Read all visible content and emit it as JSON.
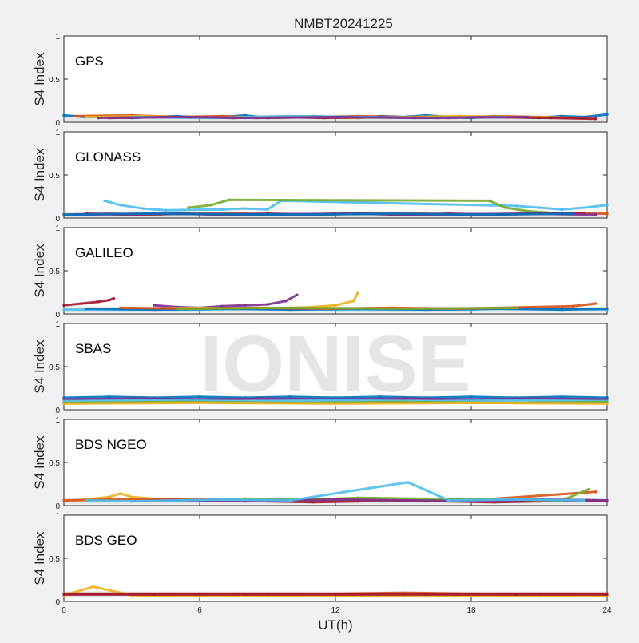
{
  "title": "NMBT20241225",
  "watermark": "IONISE",
  "chart_data": {
    "type": "scatter",
    "title": "NMBT20241225",
    "xlabel": "UT(h)",
    "ylabel": "S4 Index",
    "xlim": [
      0,
      24
    ],
    "ylim": [
      0,
      1
    ],
    "xticks": [
      "0",
      "6",
      "12",
      "18",
      "24"
    ],
    "yticks": [
      "0",
      "0.5",
      "1"
    ],
    "grid": false,
    "series_colors": [
      "#0072bd",
      "#d95319",
      "#edb120",
      "#7e2f8e",
      "#77ac30",
      "#4dbeee",
      "#a2142f"
    ],
    "panels": [
      {
        "name": "GPS",
        "baseline": 0.05,
        "series": [
          {
            "color": "#0072bd",
            "x": [
              0,
              1,
              2,
              3,
              4,
              5,
              6,
              7,
              8,
              9,
              10,
              11,
              12,
              13,
              14,
              15,
              16,
              17,
              18,
              19,
              20,
              21,
              22,
              23,
              24
            ],
            "y": [
              0.08,
              0.06,
              0.07,
              0.05,
              0.06,
              0.07,
              0.05,
              0.06,
              0.08,
              0.05,
              0.06,
              0.07,
              0.06,
              0.05,
              0.07,
              0.06,
              0.08,
              0.06,
              0.05,
              0.07,
              0.06,
              0.05,
              0.07,
              0.06,
              0.09
            ]
          },
          {
            "color": "#d95319",
            "x": [
              0.5,
              3,
              5,
              7,
              9,
              11,
              13,
              15,
              17,
              19,
              21,
              23
            ],
            "y": [
              0.07,
              0.08,
              0.06,
              0.07,
              0.05,
              0.06,
              0.07,
              0.06,
              0.05,
              0.07,
              0.06,
              0.05
            ]
          },
          {
            "color": "#edb120",
            "x": [
              1,
              3.5,
              6,
              8,
              10.5,
              12.5,
              15,
              17.5,
              20,
              22.5
            ],
            "y": [
              0.06,
              0.07,
              0.05,
              0.06,
              0.07,
              0.05,
              0.06,
              0.07,
              0.06,
              0.05
            ]
          },
          {
            "color": "#a2142f",
            "x": [
              2,
              4.5,
              7.5,
              9.5,
              11.5,
              14,
              16.5,
              18.5,
              21.5,
              23.5
            ],
            "y": [
              0.05,
              0.06,
              0.05,
              0.06,
              0.05,
              0.06,
              0.05,
              0.06,
              0.05,
              0.04
            ]
          },
          {
            "color": "#4dbeee",
            "x": [
              3,
              6.5,
              10,
              13.5,
              16,
              19.5
            ],
            "y": [
              0.06,
              0.05,
              0.07,
              0.06,
              0.05,
              0.06
            ]
          },
          {
            "color": "#7e2f8e",
            "x": [
              1.5,
              5.5,
              8.5,
              12,
              15.5,
              20.5
            ],
            "y": [
              0.05,
              0.06,
              0.05,
              0.06,
              0.05,
              0.06
            ]
          }
        ]
      },
      {
        "name": "GLONASS",
        "baseline": 0.04,
        "series": [
          {
            "color": "#4dbeee",
            "x": [
              1.8,
              2.5,
              3.5,
              4.5,
              7,
              8,
              9,
              9.6,
              20,
              21,
              22,
              23,
              24
            ],
            "y": [
              0.2,
              0.15,
              0.11,
              0.09,
              0.1,
              0.11,
              0.1,
              0.2,
              0.14,
              0.12,
              0.1,
              0.12,
              0.15
            ]
          },
          {
            "color": "#77ac30",
            "x": [
              5.5,
              6.5,
              7.3,
              18.8,
              19.5,
              20.5,
              21.5
            ],
            "y": [
              0.12,
              0.15,
              0.21,
              0.2,
              0.12,
              0.08,
              0.06
            ]
          },
          {
            "color": "#d95319",
            "x": [
              0,
              2,
              4,
              6,
              8,
              10,
              12,
              14,
              16,
              18,
              20,
              22,
              24
            ],
            "y": [
              0.04,
              0.05,
              0.04,
              0.06,
              0.05,
              0.04,
              0.05,
              0.06,
              0.05,
              0.04,
              0.05,
              0.06,
              0.05
            ]
          },
          {
            "color": "#a2142f",
            "x": [
              1,
              3,
              5,
              7,
              9,
              11,
              13,
              15,
              17,
              19,
              21,
              23
            ],
            "y": [
              0.05,
              0.04,
              0.05,
              0.04,
              0.05,
              0.04,
              0.05,
              0.04,
              0.05,
              0.04,
              0.05,
              0.06
            ]
          },
          {
            "color": "#7e2f8e",
            "x": [
              0.5,
              4,
              8.5,
              12.5,
              16.5,
              20.5,
              23.5
            ],
            "y": [
              0.04,
              0.05,
              0.04,
              0.05,
              0.04,
              0.05,
              0.04
            ]
          },
          {
            "color": "#0072bd",
            "x": [
              0,
              3.5,
              10.5,
              14.5,
              18.5,
              22.5
            ],
            "y": [
              0.04,
              0.05,
              0.04,
              0.05,
              0.04,
              0.05
            ]
          }
        ]
      },
      {
        "name": "GALILEO",
        "baseline": 0.05,
        "series": [
          {
            "color": "#a2142f",
            "x": [
              0,
              0.8,
              1.5,
              2,
              2.2
            ],
            "y": [
              0.1,
              0.12,
              0.14,
              0.16,
              0.18
            ]
          },
          {
            "color": "#7e2f8e",
            "x": [
              4,
              5,
              6,
              7,
              8,
              9,
              9.8,
              10.3
            ],
            "y": [
              0.1,
              0.08,
              0.07,
              0.09,
              0.1,
              0.11,
              0.15,
              0.22
            ]
          },
          {
            "color": "#edb120",
            "x": [
              3,
              6,
              9,
              11,
              12,
              12.8,
              13
            ],
            "y": [
              0.06,
              0.07,
              0.06,
              0.08,
              0.1,
              0.15,
              0.25
            ]
          },
          {
            "color": "#4dbeee",
            "x": [
              0,
              3,
              6,
              9,
              12,
              15,
              18,
              20.5,
              21.5,
              24
            ],
            "y": [
              0.05,
              0.05,
              0.05,
              0.06,
              0.05,
              0.05,
              0.05,
              0.07,
              0.06,
              0.05
            ]
          },
          {
            "color": "#0072bd",
            "x": [
              1,
              4,
              7,
              10,
              13,
              16,
              19,
              22,
              24
            ],
            "y": [
              0.06,
              0.05,
              0.06,
              0.05,
              0.06,
              0.05,
              0.06,
              0.05,
              0.06
            ]
          },
          {
            "color": "#d95319",
            "x": [
              2.5,
              5.5,
              8.5,
              11.5,
              14.5,
              17.5,
              22.5,
              23.5
            ],
            "y": [
              0.07,
              0.06,
              0.07,
              0.06,
              0.07,
              0.06,
              0.09,
              0.12
            ]
          },
          {
            "color": "#77ac30",
            "x": [
              5,
              10,
              15,
              20
            ],
            "y": [
              0.06,
              0.07,
              0.06,
              0.07
            ]
          }
        ]
      },
      {
        "name": "SBAS",
        "baseline": 0.1,
        "series": [
          {
            "color": "#0072bd",
            "x": [
              0,
              2,
              4,
              6,
              8,
              10,
              12,
              14,
              16,
              18,
              20,
              22,
              24
            ],
            "y": [
              0.14,
              0.15,
              0.14,
              0.15,
              0.14,
              0.15,
              0.14,
              0.15,
              0.14,
              0.15,
              0.14,
              0.15,
              0.14
            ]
          },
          {
            "color": "#7e2f8e",
            "x": [
              0,
              3,
              6,
              9,
              12,
              15,
              18,
              21,
              24
            ],
            "y": [
              0.12,
              0.13,
              0.12,
              0.13,
              0.12,
              0.13,
              0.12,
              0.13,
              0.12
            ]
          },
          {
            "color": "#4dbeee",
            "x": [
              0,
              4,
              8,
              12,
              16,
              20,
              24
            ],
            "y": [
              0.1,
              0.11,
              0.1,
              0.11,
              0.1,
              0.11,
              0.1
            ]
          },
          {
            "color": "#77ac30",
            "x": [
              0,
              5,
              10,
              15,
              20,
              24
            ],
            "y": [
              0.08,
              0.09,
              0.08,
              0.09,
              0.08,
              0.09
            ]
          },
          {
            "color": "#edb120",
            "x": [
              0,
              6,
              12,
              18,
              24
            ],
            "y": [
              0.07,
              0.08,
              0.07,
              0.08,
              0.07
            ]
          }
        ]
      },
      {
        "name": "BDS NGEO",
        "baseline": 0.05,
        "series": [
          {
            "color": "#edb120",
            "x": [
              0,
              1,
              2,
              2.5,
              3,
              4
            ],
            "y": [
              0.05,
              0.07,
              0.1,
              0.14,
              0.1,
              0.08
            ]
          },
          {
            "color": "#0072bd",
            "x": [
              4,
              6,
              8,
              10,
              12,
              14,
              16,
              18,
              20,
              22
            ],
            "y": [
              0.07,
              0.06,
              0.08,
              0.06,
              0.07,
              0.05,
              0.06,
              0.07,
              0.05,
              0.06
            ]
          },
          {
            "color": "#a2142f",
            "x": [
              9,
              11,
              13,
              15,
              17,
              19,
              21,
              23,
              24
            ],
            "y": [
              0.05,
              0.04,
              0.05,
              0.06,
              0.05,
              0.04,
              0.05,
              0.06,
              0.05
            ]
          },
          {
            "color": "#d95319",
            "x": [
              0,
              2,
              5,
              7,
              10,
              12,
              14,
              16,
              18,
              23.5
            ],
            "y": [
              0.06,
              0.07,
              0.08,
              0.07,
              0.06,
              0.07,
              0.06,
              0.05,
              0.06,
              0.16
            ]
          },
          {
            "color": "#77ac30",
            "x": [
              6,
              8,
              11,
              13,
              16,
              19,
              22,
              23.2
            ],
            "y": [
              0.06,
              0.08,
              0.07,
              0.09,
              0.08,
              0.07,
              0.06,
              0.19
            ]
          },
          {
            "color": "#7e2f8e",
            "x": [
              3,
              5,
              8,
              12,
              15,
              18,
              21,
              24
            ],
            "y": [
              0.05,
              0.06,
              0.05,
              0.07,
              0.06,
              0.05,
              0.07,
              0.06
            ]
          },
          {
            "color": "#4dbeee",
            "x": [
              1,
              3,
              7,
              10,
              15.2,
              17,
              20,
              23
            ],
            "y": [
              0.06,
              0.05,
              0.07,
              0.06,
              0.27,
              0.06,
              0.07,
              0.06
            ]
          }
        ]
      },
      {
        "name": "BDS GEO",
        "baseline": 0.08,
        "series": [
          {
            "color": "#edb120",
            "x": [
              0,
              1.3,
              3,
              6,
              9,
              12,
              15,
              18,
              21,
              24
            ],
            "y": [
              0.07,
              0.17,
              0.07,
              0.06,
              0.07,
              0.06,
              0.07,
              0.06,
              0.07,
              0.06
            ]
          },
          {
            "color": "#d95319",
            "x": [
              0,
              3,
              6,
              9,
              12,
              15,
              18,
              21,
              24
            ],
            "y": [
              0.09,
              0.09,
              0.09,
              0.09,
              0.09,
              0.1,
              0.09,
              0.09,
              0.09
            ]
          },
          {
            "color": "#a2142f",
            "x": [
              0,
              4,
              8,
              12,
              16,
              20,
              24
            ],
            "y": [
              0.08,
              0.08,
              0.08,
              0.08,
              0.08,
              0.08,
              0.08
            ]
          }
        ]
      }
    ]
  }
}
